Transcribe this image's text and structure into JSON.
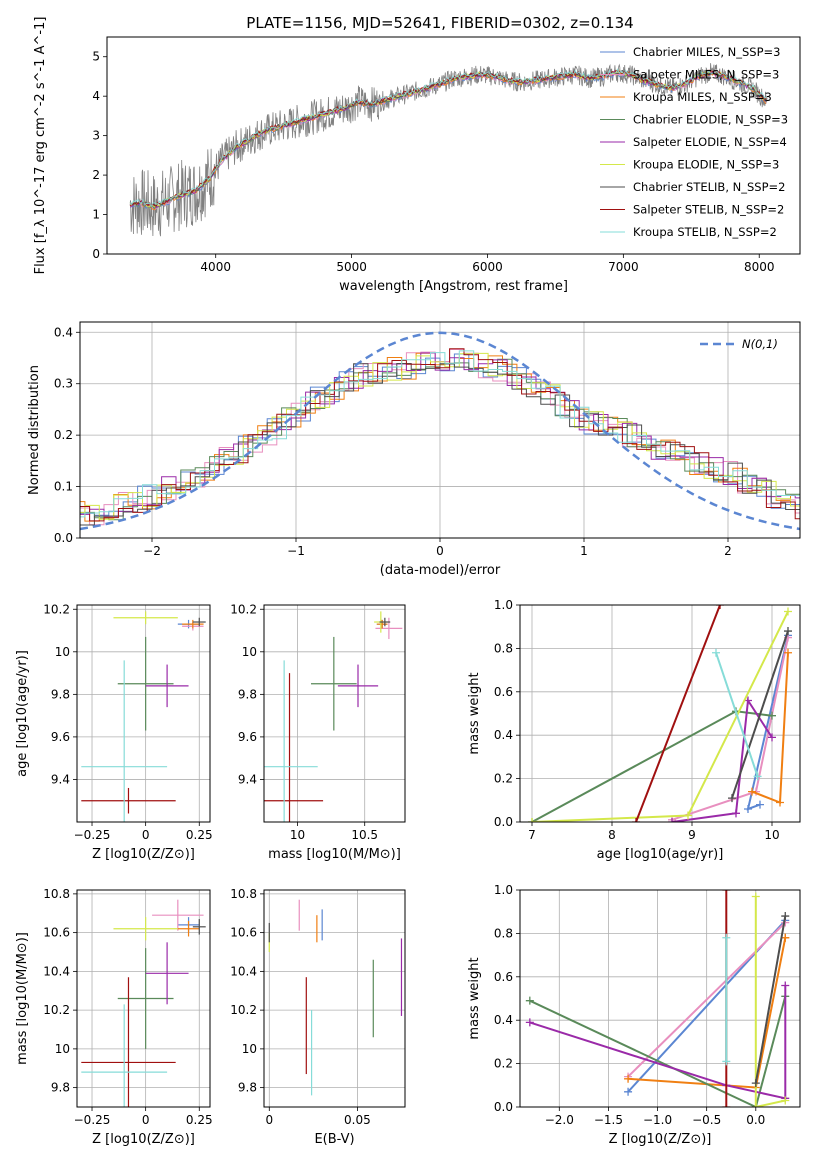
{
  "figure_title": "PLATE=1156, MJD=52641, FIBERID=0302, z=0.134",
  "colors": {
    "c_miles": "#5b86d2",
    "s_miles": "#e88fbf",
    "k_miles": "#f07f12",
    "c_elodie": "#5a8a5a",
    "s_elodie": "#9a2aa8",
    "k_elodie": "#d4e84a",
    "c_stelib": "#4d4d4d",
    "s_stelib": "#a01010",
    "k_stelib": "#86dcd8",
    "gauss": "#5b86d2",
    "grid": "#b0b0b0",
    "data": "#808080"
  },
  "chart_data": [
    {
      "id": "spectrum",
      "type": "line",
      "title": "PLATE=1156, MJD=52641, FIBERID=0302, z=0.134",
      "xlabel": "wavelength [Angstrom, rest frame]",
      "ylabel": "Flux [f_λ 10^-17 erg cm^-2 s^-1 A^-1]",
      "xlim": [
        3200,
        8300
      ],
      "ylim": [
        0,
        5.5
      ],
      "xticks": [
        4000,
        5000,
        6000,
        7000,
        8000
      ],
      "yticks": [
        0,
        1,
        2,
        3,
        4,
        5
      ],
      "grid": false,
      "legend_position": "top-right",
      "data_series": {
        "name": "observed spectrum",
        "x": [
          3370,
          3450,
          3550,
          3650,
          3750,
          3850,
          3950,
          4050,
          4150,
          4250,
          4350,
          4450,
          4550,
          4650,
          4750,
          4850,
          4950,
          5050,
          5150,
          5250,
          5350,
          5450,
          5550,
          5650,
          5750,
          5850,
          5950,
          6050,
          6150,
          6250,
          6350,
          6450,
          6550,
          6650,
          6750,
          6850,
          6950,
          7050,
          7150,
          7250,
          7350,
          7450,
          7550,
          7650,
          7750,
          7850,
          7950,
          8060
        ],
        "y": [
          1.25,
          1.3,
          1.2,
          1.35,
          1.5,
          1.6,
          1.9,
          2.4,
          2.7,
          2.9,
          3.1,
          3.2,
          3.3,
          3.4,
          3.5,
          3.6,
          3.7,
          3.85,
          3.8,
          3.9,
          4.0,
          4.1,
          4.2,
          4.3,
          4.45,
          4.5,
          4.55,
          4.5,
          4.4,
          4.35,
          4.4,
          4.45,
          4.5,
          4.55,
          4.45,
          4.5,
          4.6,
          4.55,
          4.4,
          4.3,
          4.2,
          4.3,
          4.5,
          4.6,
          4.5,
          4.35,
          4.2,
          3.85
        ]
      },
      "legend": [
        "Chabrier MILES, N_SSP=3",
        "Salpeter MILES, N_SSP=3",
        "Kroupa MILES, N_SSP=3",
        "Chabrier ELODIE, N_SSP=3",
        "Salpeter ELODIE, N_SSP=4",
        "Kroupa ELODIE, N_SSP=3",
        "Chabrier STELIB, N_SSP=2",
        "Salpeter STELIB, N_SSP=2",
        "Kroupa STELIB, N_SSP=2"
      ]
    },
    {
      "id": "residuals",
      "type": "line",
      "xlabel": "(data-model)/error",
      "ylabel": "Normed distribution",
      "xlim": [
        -2.5,
        2.5
      ],
      "ylim": [
        0,
        0.42
      ],
      "xticks": [
        -2,
        -1,
        0,
        1,
        2
      ],
      "yticks": [
        0.0,
        0.1,
        0.2,
        0.3,
        0.4
      ],
      "grid": true,
      "legend_position": "top-right",
      "gaussian_label": "N(0,1)",
      "envelope": {
        "x": [
          -2.5,
          -2.25,
          -2.0,
          -1.75,
          -1.5,
          -1.25,
          -1.0,
          -0.75,
          -0.5,
          -0.25,
          0.0,
          0.25,
          0.5,
          0.75,
          1.0,
          1.25,
          1.5,
          1.75,
          2.0,
          2.25,
          2.5
        ],
        "y": [
          0.04,
          0.06,
          0.08,
          0.11,
          0.15,
          0.19,
          0.24,
          0.29,
          0.32,
          0.33,
          0.35,
          0.34,
          0.32,
          0.28,
          0.23,
          0.21,
          0.18,
          0.15,
          0.13,
          0.09,
          0.06
        ]
      }
    },
    {
      "id": "age-vs-Z",
      "type": "scatter",
      "xlabel": "Z [log10(Z/Z⊙)]",
      "ylabel": "age [log10(age/yr)]",
      "xlim": [
        -0.32,
        0.3
      ],
      "ylim": [
        9.2,
        10.22
      ],
      "xticks": [
        -0.25,
        0.0,
        0.25
      ],
      "yticks": [
        9.4,
        9.6,
        9.8,
        10.0,
        10.2
      ],
      "grid": true,
      "points": [
        {
          "model": "Chabrier MILES",
          "x": 0.2,
          "xerr": 0.05,
          "y": 10.13,
          "yerr": 0.02
        },
        {
          "model": "Salpeter MILES",
          "x": 0.22,
          "xerr": 0.05,
          "y": 10.12,
          "yerr": 0.02
        },
        {
          "model": "Kroupa MILES",
          "x": 0.22,
          "xerr": 0.05,
          "y": 10.13,
          "yerr": 0.02
        },
        {
          "model": "Chabrier ELODIE",
          "x": 0.0,
          "xerr": 0.13,
          "y": 9.85,
          "yerr": 0.22
        },
        {
          "model": "Salpeter ELODIE",
          "x": 0.1,
          "xerr": 0.1,
          "y": 9.84,
          "yerr": 0.1
        },
        {
          "model": "Kroupa ELODIE",
          "x": 0.0,
          "xerr": 0.15,
          "y": 10.16,
          "yerr": 0.03
        },
        {
          "model": "Chabrier STELIB",
          "x": 0.25,
          "xerr": 0.03,
          "y": 10.14,
          "yerr": 0.02
        },
        {
          "model": "Salpeter STELIB",
          "x": -0.08,
          "xerr": 0.22,
          "y": 9.3,
          "yerr": 0.06
        },
        {
          "model": "Kroupa STELIB",
          "x": -0.1,
          "xerr": 0.2,
          "y": 9.46,
          "yerr": 0.5
        }
      ]
    },
    {
      "id": "age-vs-mass",
      "type": "scatter",
      "xlabel": "mass [log10(M/M⊙)]",
      "ylabel": "",
      "xlim": [
        9.75,
        10.8
      ],
      "ylim": [
        9.2,
        10.22
      ],
      "xticks": [
        10.0,
        10.5
      ],
      "yticks": [
        9.4,
        9.6,
        9.8,
        10.0,
        10.2
      ],
      "grid": true,
      "points": [
        {
          "model": "Chabrier MILES",
          "x": 10.63,
          "xerr": 0.04,
          "y": 10.13,
          "yerr": 0.02
        },
        {
          "model": "Salpeter MILES",
          "x": 10.68,
          "xerr": 0.1,
          "y": 10.11,
          "yerr": 0.05
        },
        {
          "model": "Kroupa MILES",
          "x": 10.63,
          "xerr": 0.04,
          "y": 10.13,
          "yerr": 0.02
        },
        {
          "model": "Chabrier ELODIE",
          "x": 10.27,
          "xerr": 0.17,
          "y": 9.85,
          "yerr": 0.22
        },
        {
          "model": "Salpeter ELODIE",
          "x": 10.45,
          "xerr": 0.15,
          "y": 9.84,
          "yerr": 0.1
        },
        {
          "model": "Kroupa ELODIE",
          "x": 10.62,
          "xerr": 0.05,
          "y": 10.14,
          "yerr": 0.05
        },
        {
          "model": "Chabrier STELIB",
          "x": 10.65,
          "xerr": 0.04,
          "y": 10.14,
          "yerr": 0.02
        },
        {
          "model": "Salpeter STELIB",
          "x": 9.94,
          "xerr": 0.25,
          "y": 9.3,
          "yerr": 0.6
        },
        {
          "model": "Kroupa STELIB",
          "x": 9.9,
          "xerr": 0.25,
          "y": 9.46,
          "yerr": 0.5
        }
      ]
    },
    {
      "id": "weight-vs-age",
      "type": "line",
      "xlabel": "age [log10(age/yr)]",
      "ylabel": "mass weight",
      "xlim": [
        6.85,
        10.35
      ],
      "ylim": [
        0,
        1
      ],
      "xticks": [
        7,
        8,
        9,
        10
      ],
      "yticks": [
        0.0,
        0.2,
        0.4,
        0.6,
        0.8,
        1.0
      ],
      "grid": true,
      "series": [
        {
          "model": "Chabrier MILES",
          "x": [
            9.85,
            9.7,
            10.2
          ],
          "y": [
            0.08,
            0.06,
            0.86
          ]
        },
        {
          "model": "Salpeter MILES",
          "x": [
            8.75,
            9.8,
            10.2
          ],
          "y": [
            0.01,
            0.14,
            0.85
          ]
        },
        {
          "model": "Kroupa MILES",
          "x": [
            9.75,
            10.1,
            10.2
          ],
          "y": [
            0.14,
            0.09,
            0.78
          ]
        },
        {
          "model": "Chabrier ELODIE",
          "x": [
            7.0,
            9.55,
            10.0
          ],
          "y": [
            0.0,
            0.51,
            0.49
          ]
        },
        {
          "model": "Salpeter ELODIE",
          "x": [
            8.75,
            9.55,
            9.7,
            10.0
          ],
          "y": [
            0.0,
            0.04,
            0.56,
            0.39
          ]
        },
        {
          "model": "Kroupa ELODIE",
          "x": [
            7.0,
            8.95,
            10.2
          ],
          "y": [
            0.0,
            0.03,
            0.97
          ]
        },
        {
          "model": "Chabrier STELIB",
          "x": [
            9.5,
            10.2
          ],
          "y": [
            0.11,
            0.88
          ]
        },
        {
          "model": "Salpeter STELIB",
          "x": [
            8.3,
            9.35
          ],
          "y": [
            0.0,
            1.0
          ]
        },
        {
          "model": "Kroupa STELIB",
          "x": [
            9.3,
            9.82
          ],
          "y": [
            0.78,
            0.21
          ]
        }
      ]
    },
    {
      "id": "mass-vs-Z",
      "type": "scatter",
      "xlabel": "Z [log10(Z/Z⊙)]",
      "ylabel": "mass [log10(M/M⊙)]",
      "xlim": [
        -0.32,
        0.3
      ],
      "ylim": [
        9.7,
        10.82
      ],
      "xticks": [
        -0.25,
        0.0,
        0.25
      ],
      "yticks": [
        9.8,
        10.0,
        10.2,
        10.4,
        10.6,
        10.8
      ],
      "grid": true,
      "points": [
        {
          "model": "Chabrier MILES",
          "x": 0.2,
          "xerr": 0.05,
          "y": 10.64,
          "yerr": 0.04
        },
        {
          "model": "Salpeter MILES",
          "x": 0.15,
          "xerr": 0.12,
          "y": 10.69,
          "yerr": 0.08
        },
        {
          "model": "Kroupa MILES",
          "x": 0.2,
          "xerr": 0.05,
          "y": 10.62,
          "yerr": 0.04
        },
        {
          "model": "Chabrier ELODIE",
          "x": 0.0,
          "xerr": 0.13,
          "y": 10.26,
          "yerr": 0.26
        },
        {
          "model": "Salpeter ELODIE",
          "x": 0.1,
          "xerr": 0.1,
          "y": 10.39,
          "yerr": 0.16
        },
        {
          "model": "Kroupa ELODIE",
          "x": 0.0,
          "xerr": 0.15,
          "y": 10.62,
          "yerr": 0.06
        },
        {
          "model": "Chabrier STELIB",
          "x": 0.25,
          "xerr": 0.03,
          "y": 10.63,
          "yerr": 0.04
        },
        {
          "model": "Salpeter STELIB",
          "x": -0.08,
          "xerr": 0.22,
          "y": 9.93,
          "yerr": 0.44
        },
        {
          "model": "Kroupa STELIB",
          "x": -0.1,
          "xerr": 0.2,
          "y": 9.88,
          "yerr": 0.35
        }
      ]
    },
    {
      "id": "mass-vs-EBV",
      "type": "scatter",
      "xlabel": "E(B-V)",
      "ylabel": "",
      "xlim": [
        -0.003,
        0.077
      ],
      "ylim": [
        9.7,
        10.82
      ],
      "xticks": [
        0.0,
        0.05
      ],
      "yticks": [
        9.8,
        10.0,
        10.2,
        10.4,
        10.6,
        10.8
      ],
      "grid": true,
      "points": [
        {
          "model": "Chabrier MILES",
          "x": 0.03,
          "y": 10.64,
          "yerr": 0.08
        },
        {
          "model": "Salpeter MILES",
          "x": 0.017,
          "y": 10.69,
          "yerr": 0.08
        },
        {
          "model": "Kroupa MILES",
          "x": 0.027,
          "y": 10.62,
          "yerr": 0.07
        },
        {
          "model": "Chabrier ELODIE",
          "x": 0.059,
          "y": 10.26,
          "yerr": 0.2
        },
        {
          "model": "Salpeter ELODIE",
          "x": 0.075,
          "y": 10.37,
          "yerr": 0.2
        },
        {
          "model": "Kroupa ELODIE",
          "x": 0.0,
          "y": 10.55,
          "yerr": 0.05
        },
        {
          "model": "Chabrier STELIB",
          "x": 0.0,
          "y": 10.6,
          "yerr": 0.05
        },
        {
          "model": "Salpeter STELIB",
          "x": 0.021,
          "y": 10.12,
          "yerr": 0.25
        },
        {
          "model": "Kroupa STELIB",
          "x": 0.024,
          "y": 9.98,
          "yerr": 0.22
        }
      ]
    },
    {
      "id": "weight-vs-Z",
      "type": "line",
      "xlabel": "Z [log10(Z/Z⊙)]",
      "ylabel": "mass weight",
      "xlim": [
        -2.4,
        0.45
      ],
      "ylim": [
        0,
        1
      ],
      "xticks": [
        -2.0,
        -1.5,
        -1.0,
        -0.5,
        0.0
      ],
      "yticks": [
        0.0,
        0.2,
        0.4,
        0.6,
        0.8,
        1.0
      ],
      "grid": true,
      "series": [
        {
          "model": "Chabrier MILES",
          "x": [
            -1.3,
            0.3
          ],
          "y": [
            0.07,
            0.86
          ]
        },
        {
          "model": "Salpeter MILES",
          "x": [
            -1.3,
            0.3
          ],
          "y": [
            0.14,
            0.85
          ]
        },
        {
          "model": "Kroupa MILES",
          "x": [
            -1.3,
            0.0,
            0.3,
            0.3
          ],
          "y": [
            0.13,
            0.09,
            0.78,
            0.78
          ]
        },
        {
          "model": "Chabrier ELODIE",
          "x": [
            -2.3,
            0.0,
            0.3
          ],
          "y": [
            0.49,
            0.0,
            0.51
          ]
        },
        {
          "model": "Salpeter ELODIE",
          "x": [
            -2.3,
            -0.3,
            0.3,
            0.3
          ],
          "y": [
            0.39,
            0.1,
            0.04,
            0.56
          ]
        },
        {
          "model": "Kroupa ELODIE",
          "x": [
            0.0,
            0.0,
            0.3
          ],
          "y": [
            0.97,
            0.0,
            0.03
          ]
        },
        {
          "model": "Chabrier STELIB",
          "x": [
            0.0,
            0.3
          ],
          "y": [
            0.11,
            0.88
          ]
        },
        {
          "model": "Salpeter STELIB",
          "x": [
            -0.3,
            -0.3
          ],
          "y": [
            0.0,
            1.0
          ]
        },
        {
          "model": "Kroupa STELIB",
          "x": [
            -0.3,
            -0.3
          ],
          "y": [
            0.21,
            0.78
          ]
        }
      ]
    }
  ]
}
